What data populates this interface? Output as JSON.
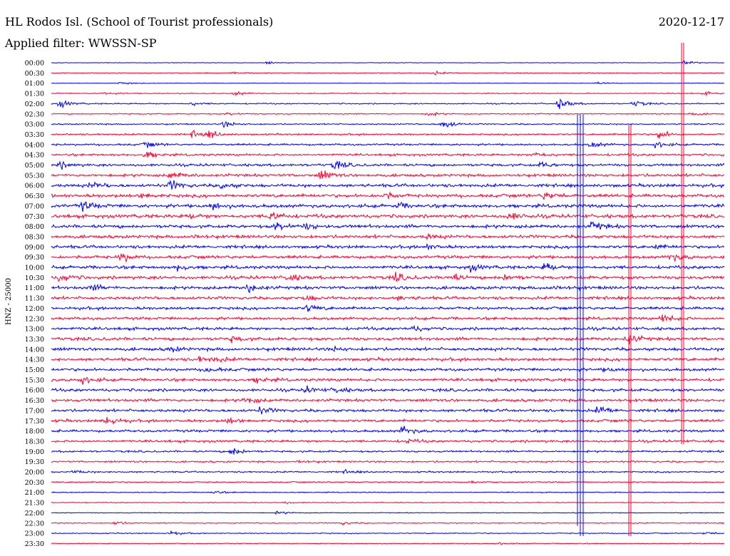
{
  "header": {
    "station": "HL Rodos Isl. (School of Tourist professionals)",
    "date": "2020-12-17",
    "filter": "Applied filter: WWSSN-SP"
  },
  "chart_data": {
    "type": "line",
    "title": "HL Rodos Isl. (School of Tourist professionals)",
    "ylabel": "HNZ - 25000",
    "xlabel": "",
    "rows": [
      "00:00",
      "00:30",
      "01:00",
      "01:30",
      "02:00",
      "02:30",
      "03:00",
      "03:30",
      "04:00",
      "04:30",
      "05:00",
      "05:30",
      "06:00",
      "06:30",
      "07:00",
      "07:30",
      "08:00",
      "08:30",
      "09:00",
      "09:30",
      "10:00",
      "10:30",
      "11:00",
      "11:30",
      "12:00",
      "12:30",
      "13:00",
      "13:30",
      "14:00",
      "14:30",
      "15:00",
      "15:30",
      "16:00",
      "16:30",
      "17:00",
      "17:30",
      "18:00",
      "18:30",
      "19:00",
      "19:30",
      "20:00",
      "20:30",
      "21:00",
      "21:30",
      "22:00",
      "22:30",
      "23:00",
      "23:30"
    ],
    "colors": {
      "even": "#0000ff",
      "odd": "#ff0033"
    },
    "noise_level": [
      0.6,
      1,
      0.6,
      1.2,
      1.5,
      1.3,
      1.5,
      2,
      2.3,
      2.6,
      3,
      3.2,
      3.6,
      3.8,
      4,
      4,
      3.8,
      3.6,
      3.5,
      3.6,
      3.7,
      3.8,
      3.6,
      3.4,
      3.3,
      3.3,
      3.4,
      3.6,
      3.6,
      3.5,
      3.4,
      3.4,
      3.4,
      3.3,
      3.2,
      3.1,
      3,
      2.8,
      2.3,
      2,
      1.8,
      1.5,
      1.2,
      1,
      1,
      1.2,
      1.1,
      1.1
    ],
    "events": [
      {
        "row": 0,
        "x": 375,
        "a": 3
      },
      {
        "row": 0,
        "x": 960,
        "a": 5
      },
      {
        "row": 1,
        "x": 325,
        "a": 3
      },
      {
        "row": 1,
        "x": 610,
        "a": 3
      },
      {
        "row": 2,
        "x": 170,
        "a": 3
      },
      {
        "row": 2,
        "x": 840,
        "a": 3
      },
      {
        "row": 3,
        "x": 145,
        "a": 3
      },
      {
        "row": 3,
        "x": 330,
        "a": 4
      },
      {
        "row": 3,
        "x": 990,
        "a": 3
      },
      {
        "row": 4,
        "x": 85,
        "a": 7
      },
      {
        "row": 4,
        "x": 270,
        "a": 3
      },
      {
        "row": 4,
        "x": 785,
        "a": 11
      },
      {
        "row": 4,
        "x": 890,
        "a": 6
      },
      {
        "row": 5,
        "x": 320,
        "a": 3
      },
      {
        "row": 5,
        "x": 600,
        "a": 4
      },
      {
        "row": 5,
        "x": 970,
        "a": 3
      },
      {
        "row": 6,
        "x": 315,
        "a": 6
      },
      {
        "row": 6,
        "x": 622,
        "a": 11
      },
      {
        "row": 7,
        "x": 270,
        "a": 7
      },
      {
        "row": 7,
        "x": 295,
        "a": 6
      },
      {
        "row": 7,
        "x": 925,
        "a": 9
      },
      {
        "row": 8,
        "x": 205,
        "a": 6
      },
      {
        "row": 8,
        "x": 830,
        "a": 6
      },
      {
        "row": 8,
        "x": 920,
        "a": 6
      },
      {
        "row": 9,
        "x": 205,
        "a": 8
      },
      {
        "row": 9,
        "x": 750,
        "a": 7
      },
      {
        "row": 10,
        "x": 85,
        "a": 6
      },
      {
        "row": 10,
        "x": 470,
        "a": 9
      },
      {
        "row": 10,
        "x": 760,
        "a": 5
      },
      {
        "row": 11,
        "x": 240,
        "a": 7
      },
      {
        "row": 11,
        "x": 450,
        "a": 10
      },
      {
        "row": 12,
        "x": 128,
        "a": 7
      },
      {
        "row": 12,
        "x": 240,
        "a": 9
      },
      {
        "row": 12,
        "x": 310,
        "a": 6
      },
      {
        "row": 13,
        "x": 200,
        "a": 5
      },
      {
        "row": 13,
        "x": 540,
        "a": 6
      },
      {
        "row": 13,
        "x": 765,
        "a": 8
      },
      {
        "row": 14,
        "x": 115,
        "a": 10
      },
      {
        "row": 14,
        "x": 298,
        "a": 7
      },
      {
        "row": 14,
        "x": 560,
        "a": 5
      },
      {
        "row": 15,
        "x": 268,
        "a": 5
      },
      {
        "row": 15,
        "x": 380,
        "a": 9
      },
      {
        "row": 15,
        "x": 715,
        "a": 8
      },
      {
        "row": 16,
        "x": 388,
        "a": 9
      },
      {
        "row": 16,
        "x": 430,
        "a": 6
      },
      {
        "row": 16,
        "x": 832,
        "a": 9
      },
      {
        "row": 17,
        "x": 270,
        "a": 4
      },
      {
        "row": 17,
        "x": 600,
        "a": 4
      },
      {
        "row": 18,
        "x": 600,
        "a": 5
      },
      {
        "row": 18,
        "x": 920,
        "a": 4
      },
      {
        "row": 19,
        "x": 170,
        "a": 9
      },
      {
        "row": 19,
        "x": 940,
        "a": 9
      },
      {
        "row": 20,
        "x": 250,
        "a": 6
      },
      {
        "row": 20,
        "x": 660,
        "a": 6
      },
      {
        "row": 20,
        "x": 765,
        "a": 9
      },
      {
        "row": 21,
        "x": 85,
        "a": 8
      },
      {
        "row": 21,
        "x": 405,
        "a": 7
      },
      {
        "row": 21,
        "x": 555,
        "a": 8
      },
      {
        "row": 21,
        "x": 630,
        "a": 8
      },
      {
        "row": 21,
        "x": 710,
        "a": 7
      },
      {
        "row": 22,
        "x": 128,
        "a": 6
      },
      {
        "row": 22,
        "x": 350,
        "a": 10
      },
      {
        "row": 22,
        "x": 775,
        "a": 5
      },
      {
        "row": 23,
        "x": 430,
        "a": 5
      },
      {
        "row": 23,
        "x": 560,
        "a": 4
      },
      {
        "row": 24,
        "x": 432,
        "a": 7
      },
      {
        "row": 25,
        "x": 930,
        "a": 9
      },
      {
        "row": 26,
        "x": 580,
        "a": 5
      },
      {
        "row": 27,
        "x": 325,
        "a": 5
      },
      {
        "row": 27,
        "x": 880,
        "a": 10
      },
      {
        "row": 28,
        "x": 240,
        "a": 5
      },
      {
        "row": 28,
        "x": 470,
        "a": 4
      },
      {
        "row": 29,
        "x": 280,
        "a": 5
      },
      {
        "row": 29,
        "x": 300,
        "a": 4
      },
      {
        "row": 30,
        "x": 290,
        "a": 5
      },
      {
        "row": 30,
        "x": 850,
        "a": 4
      },
      {
        "row": 31,
        "x": 115,
        "a": 7
      },
      {
        "row": 31,
        "x": 360,
        "a": 6
      },
      {
        "row": 32,
        "x": 430,
        "a": 6
      },
      {
        "row": 32,
        "x": 470,
        "a": 5
      },
      {
        "row": 33,
        "x": 345,
        "a": 7
      },
      {
        "row": 34,
        "x": 365,
        "a": 7
      },
      {
        "row": 34,
        "x": 840,
        "a": 9
      },
      {
        "row": 35,
        "x": 150,
        "a": 9
      },
      {
        "row": 35,
        "x": 320,
        "a": 5
      },
      {
        "row": 36,
        "x": 565,
        "a": 9
      },
      {
        "row": 37,
        "x": 570,
        "a": 4
      },
      {
        "row": 38,
        "x": 325,
        "a": 9
      },
      {
        "row": 39,
        "x": 420,
        "a": 3
      },
      {
        "row": 40,
        "x": 105,
        "a": 3
      },
      {
        "row": 40,
        "x": 485,
        "a": 3
      },
      {
        "row": 41,
        "x": 660,
        "a": 2
      },
      {
        "row": 42,
        "x": 300,
        "a": 3
      },
      {
        "row": 43,
        "x": 400,
        "a": 2
      },
      {
        "row": 44,
        "x": 390,
        "a": 3
      },
      {
        "row": 45,
        "x": 160,
        "a": 4
      },
      {
        "row": 45,
        "x": 480,
        "a": 3
      },
      {
        "row": 46,
        "x": 240,
        "a": 4
      },
      {
        "row": 46,
        "x": 990,
        "a": 3
      },
      {
        "row": 47,
        "x": 700,
        "a": 2
      }
    ],
    "spikes": [
      {
        "x": 956,
        "row_from": 0,
        "row_to": 37
      },
      {
        "x": 959,
        "row_from": 0,
        "row_to": 37
      },
      {
        "x": 810,
        "row_from": 7,
        "row_to": 45
      },
      {
        "x": 814,
        "row_from": 7,
        "row_to": 46
      },
      {
        "x": 818,
        "row_from": 7,
        "row_to": 46
      },
      {
        "x": 882,
        "row_from": 8,
        "row_to": 46
      },
      {
        "x": 885,
        "row_from": 8,
        "row_to": 46
      }
    ]
  }
}
